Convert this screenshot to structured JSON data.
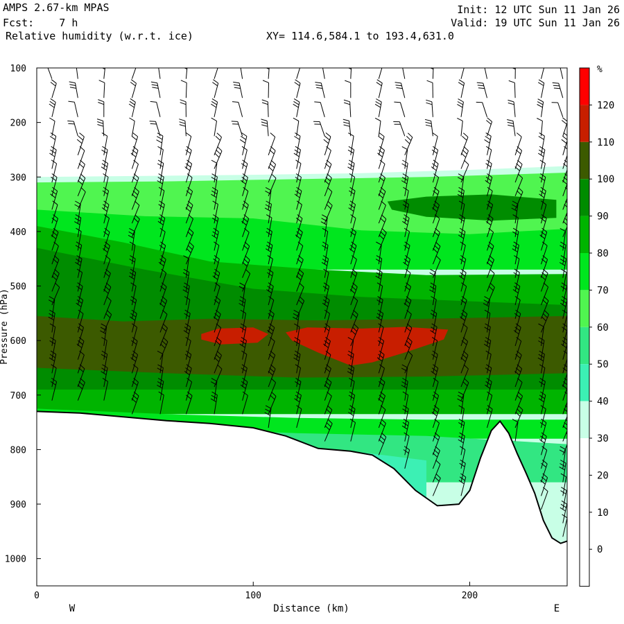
{
  "header": {
    "model": "AMPS 2.67-km MPAS",
    "fcst": "Fcst:    7 h",
    "field": "Relative humidity (w.r.t. ice)",
    "xy": "XY= 114.6,584.1 to 193.4,631.0",
    "init": "Init: 12 UTC Sun 11 Jan 26",
    "valid": "Valid: 19 UTC Sun 11 Jan 26"
  },
  "chart_data": {
    "type": "cross-section",
    "xlabel": "Distance (km)",
    "ylabel": "Pressure (hPa)",
    "xlim": [
      0,
      245
    ],
    "ylim": [
      1050,
      100
    ],
    "x_ticks": [
      0,
      100,
      200
    ],
    "y_ticks": [
      100,
      200,
      300,
      400,
      500,
      600,
      700,
      800,
      900,
      1000
    ],
    "left_label": "W",
    "right_label": "E",
    "colorbar": {
      "unit": "%",
      "levels": [
        "120",
        "110",
        "100",
        "90",
        "80",
        "70",
        "60",
        "50",
        "40",
        "30",
        "20",
        "10",
        "0"
      ],
      "colors": [
        "#ff0000",
        "#c81e00",
        "#3c5a00",
        "#008c00",
        "#00b400",
        "#00e61e",
        "#50f550",
        "#32e682",
        "#3cf0b4",
        "#c8ffe6",
        "#ffffff",
        "#ffffff",
        "#ffffff",
        "#ffffff"
      ]
    },
    "humid_top": [
      [
        0,
        300
      ],
      [
        50,
        298
      ],
      [
        100,
        296
      ],
      [
        150,
        293
      ],
      [
        200,
        287
      ],
      [
        245,
        280
      ]
    ],
    "layers": [
      {
        "name": "band-60-70-upper",
        "rh": 65,
        "color": "#50f550",
        "top": [
          [
            0,
            310
          ],
          [
            60,
            308
          ],
          [
            120,
            304
          ],
          [
            180,
            300
          ],
          [
            245,
            292
          ]
        ],
        "bottom": [
          [
            0,
            450
          ],
          [
            245,
            450
          ]
        ]
      },
      {
        "name": "band-70-80-upper",
        "rh": 75,
        "color": "#00e61e",
        "top": [
          [
            0,
            360
          ],
          [
            50,
            372
          ],
          [
            100,
            376
          ],
          [
            150,
            398
          ],
          [
            200,
            405
          ],
          [
            245,
            395
          ]
        ],
        "bottom": [
          [
            0,
            470
          ],
          [
            245,
            470
          ]
        ]
      },
      {
        "name": "band-80-90",
        "rh": 85,
        "color": "#00b400",
        "top": [
          [
            0,
            390
          ],
          [
            40,
            420
          ],
          [
            80,
            455
          ],
          [
            130,
            470
          ],
          [
            180,
            480
          ],
          [
            245,
            478
          ]
        ],
        "bottom": [
          [
            0,
            720
          ],
          [
            245,
            720
          ]
        ]
      },
      {
        "name": "band-90-100",
        "rh": 95,
        "color": "#008c00",
        "top": [
          [
            0,
            430
          ],
          [
            50,
            470
          ],
          [
            100,
            505
          ],
          [
            150,
            520
          ],
          [
            200,
            528
          ],
          [
            245,
            535
          ]
        ],
        "bottom": [
          [
            0,
            690
          ],
          [
            245,
            690
          ]
        ]
      },
      {
        "name": "band-100-110",
        "rh": 105,
        "color": "#3c5a00",
        "top": [
          [
            0,
            555
          ],
          [
            40,
            565
          ],
          [
            80,
            560
          ],
          [
            130,
            563
          ],
          [
            180,
            560
          ],
          [
            245,
            555
          ]
        ],
        "bottom": [
          [
            0,
            650
          ],
          [
            60,
            660
          ],
          [
            120,
            668
          ],
          [
            180,
            666
          ],
          [
            245,
            660
          ]
        ]
      },
      {
        "name": "band-80-90-lower",
        "rh": 85,
        "color": "#00b400",
        "top": [
          [
            0,
            690
          ],
          [
            60,
            692
          ],
          [
            120,
            696
          ],
          [
            180,
            700
          ],
          [
            245,
            706
          ]
        ],
        "bottom": [
          [
            0,
            735
          ],
          [
            245,
            735
          ]
        ]
      },
      {
        "name": "band-70-80-lower",
        "rh": 75,
        "color": "#00e61e",
        "top": [
          [
            0,
            725
          ],
          [
            60,
            735
          ],
          [
            120,
            742
          ],
          [
            180,
            745
          ],
          [
            245,
            745
          ]
        ],
        "bottom": [
          [
            0,
            780
          ],
          [
            245,
            780
          ]
        ]
      },
      {
        "name": "band-50-60-lower",
        "rh": 55,
        "color": "#32e682",
        "top": [
          [
            60,
            760
          ],
          [
            120,
            770
          ],
          [
            180,
            775
          ],
          [
            245,
            790
          ]
        ],
        "bottom": [
          [
            60,
            860
          ],
          [
            245,
            860
          ]
        ]
      },
      {
        "name": "band-40-50-lower",
        "rh": 45,
        "color": "#3cf0b4",
        "top": [
          [
            110,
            800
          ],
          [
            150,
            805
          ],
          [
            180,
            820
          ]
        ],
        "bottom": [
          [
            110,
            900
          ],
          [
            180,
            900
          ]
        ]
      }
    ],
    "upper_patch": {
      "name": "upper-humid-patch",
      "rh": 95,
      "color": "#008c00",
      "outline": [
        [
          162,
          345
        ],
        [
          180,
          336
        ],
        [
          210,
          332
        ],
        [
          240,
          342
        ],
        [
          240,
          375
        ],
        [
          210,
          380
        ],
        [
          180,
          373
        ],
        [
          164,
          360
        ]
      ]
    },
    "saturated_patches": [
      {
        "name": "supersat-patch-west",
        "rh": 115,
        "outline": [
          [
            76,
            588
          ],
          [
            84,
            578
          ],
          [
            100,
            576
          ],
          [
            107,
            588
          ],
          [
            102,
            604
          ],
          [
            85,
            607
          ],
          [
            76,
            598
          ]
        ]
      },
      {
        "name": "supersat-patch-east",
        "rh": 115,
        "outline": [
          [
            115,
            585
          ],
          [
            125,
            576
          ],
          [
            150,
            578
          ],
          [
            170,
            575
          ],
          [
            190,
            580
          ],
          [
            188,
            598
          ],
          [
            170,
            622
          ],
          [
            155,
            640
          ],
          [
            145,
            646
          ],
          [
            130,
            622
          ],
          [
            118,
            600
          ]
        ]
      }
    ],
    "terrain": [
      [
        0,
        730
      ],
      [
        20,
        733
      ],
      [
        40,
        740
      ],
      [
        60,
        747
      ],
      [
        80,
        752
      ],
      [
        100,
        760
      ],
      [
        115,
        775
      ],
      [
        130,
        798
      ],
      [
        145,
        803
      ],
      [
        155,
        810
      ],
      [
        165,
        835
      ],
      [
        175,
        875
      ],
      [
        185,
        903
      ],
      [
        195,
        900
      ],
      [
        200,
        875
      ],
      [
        205,
        815
      ],
      [
        210,
        765
      ],
      [
        214,
        748
      ],
      [
        218,
        770
      ],
      [
        222,
        808
      ],
      [
        226,
        843
      ],
      [
        230,
        880
      ],
      [
        234,
        930
      ],
      [
        238,
        962
      ],
      [
        242,
        972
      ],
      [
        245,
        968
      ]
    ],
    "wind_barb_x": [
      7,
      19,
      31,
      44,
      57,
      69,
      82,
      95,
      107,
      120,
      133,
      145,
      158,
      170,
      183,
      196,
      208,
      221,
      233,
      243
    ]
  }
}
